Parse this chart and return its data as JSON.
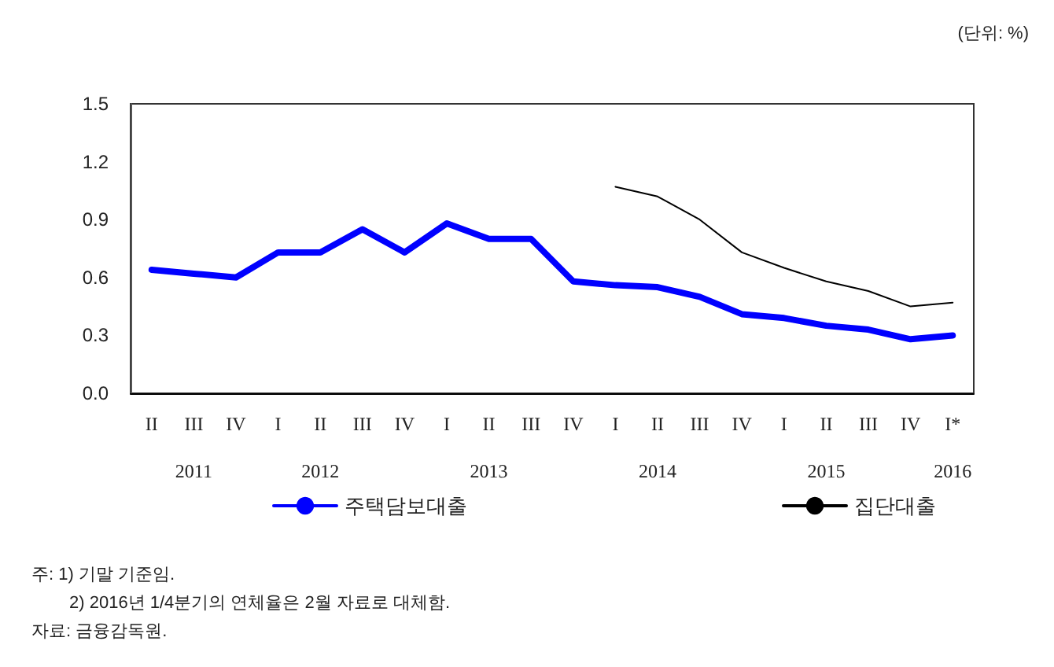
{
  "chart_data": {
    "type": "line",
    "categories": [
      "II",
      "III\n\n2011",
      "IV",
      "I",
      "II\n\n2012",
      "III",
      "IV",
      "I",
      "II\n\n2013",
      "III",
      "IV",
      "I",
      "II\n\n2014",
      "III",
      "IV",
      "I",
      "II\n\n2015",
      "III",
      "IV",
      "I*\n\n2016"
    ],
    "series": [
      {
        "name": "주택담보대출",
        "color": "#0000ff",
        "values": [
          0.64,
          0.62,
          0.6,
          0.73,
          0.73,
          0.85,
          0.73,
          0.88,
          0.8,
          0.8,
          0.58,
          0.56,
          0.55,
          0.5,
          0.41,
          0.39,
          0.35,
          0.33,
          0.28,
          0.3
        ]
      },
      {
        "name": "집단대출",
        "color": "#000000",
        "values": [
          null,
          null,
          null,
          null,
          null,
          null,
          null,
          null,
          null,
          null,
          null,
          1.07,
          1.02,
          0.9,
          0.73,
          0.65,
          0.58,
          0.53,
          0.45,
          0.47
        ]
      }
    ],
    "ylim": [
      0,
      1.5
    ],
    "yticks": [
      {
        "value": 0,
        "label": "0.0"
      },
      {
        "value": 0.3,
        "label": "0.3"
      },
      {
        "value": 0.6,
        "label": "0.6"
      },
      {
        "value": 0.9,
        "label": "0.9"
      },
      {
        "value": 1.2,
        "label": "1.2"
      },
      {
        "value": 1.5,
        "label": "1.5"
      }
    ],
    "grid": false,
    "legend": "bottom",
    "marker": "none",
    "annotations": [
      "(단위: %)",
      "주: 1) 기말 기준임.",
      "2) 2016년 1/4분기의 연체율은 2월 자료로 대체함.",
      "자료: 금융감독원."
    ]
  }
}
